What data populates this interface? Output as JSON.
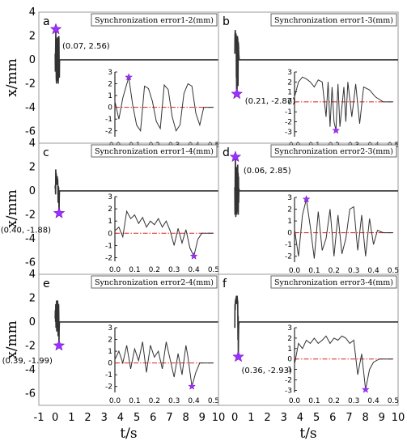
{
  "chart_data": {
    "type": "line",
    "xlabel": "t/s",
    "ylabel": "x/mm",
    "xlim": [
      -1,
      10
    ],
    "ylim": [
      -7,
      4
    ],
    "xticks": [
      -1,
      0,
      1,
      2,
      3,
      4,
      5,
      6,
      7,
      8,
      9,
      10
    ],
    "yticks": [
      4,
      2,
      0,
      -2,
      -4,
      -6
    ],
    "inset_xticks": [
      "0.0",
      "0.1",
      "0.2",
      "0.3",
      "0.4",
      "0.5"
    ],
    "inset_yticks": [
      3,
      2,
      1,
      0,
      -1,
      -2,
      -3
    ],
    "panels": [
      {
        "label": "a",
        "title": "Synchronization error1-2(mm)",
        "marker": {
          "t": 0.07,
          "x": 2.56,
          "label": "(0.07, 2.56)"
        },
        "inset_ylim": [
          -2.5,
          3
        ],
        "inset_yticks": [
          3,
          2,
          1,
          0,
          -1,
          -2
        ],
        "series": [
          {
            "t": 0.0,
            "x": 0.5
          },
          {
            "t": 0.02,
            "x": -1.0
          },
          {
            "t": 0.04,
            "x": 0.8
          },
          {
            "t": 0.07,
            "x": 2.56
          },
          {
            "t": 0.09,
            "x": 0.2
          },
          {
            "t": 0.11,
            "x": -1.5
          },
          {
            "t": 0.13,
            "x": -2.0
          },
          {
            "t": 0.15,
            "x": 1.8
          },
          {
            "t": 0.17,
            "x": 1.6
          },
          {
            "t": 0.19,
            "x": 0.5
          },
          {
            "t": 0.21,
            "x": -1.2
          },
          {
            "t": 0.23,
            "x": -1.8
          },
          {
            "t": 0.25,
            "x": 1.9
          },
          {
            "t": 0.27,
            "x": 1.5
          },
          {
            "t": 0.29,
            "x": -0.8
          },
          {
            "t": 0.31,
            "x": -2.0
          },
          {
            "t": 0.33,
            "x": -1.5
          },
          {
            "t": 0.35,
            "x": 1.2
          },
          {
            "t": 0.37,
            "x": 2.0
          },
          {
            "t": 0.39,
            "x": 1.8
          },
          {
            "t": 0.41,
            "x": -0.5
          },
          {
            "t": 0.43,
            "x": -1.5
          },
          {
            "t": 0.45,
            "x": 0.0
          },
          {
            "t": 0.47,
            "x": 0.0
          },
          {
            "t": 0.5,
            "x": 0.0
          }
        ]
      },
      {
        "label": "b",
        "title": "Synchronization error1-3(mm)",
        "marker": {
          "t": 0.21,
          "x": -2.87,
          "label": "(0.21, -2.87)"
        },
        "inset_ylim": [
          -3.5,
          3
        ],
        "inset_yticks": [
          3,
          2,
          1,
          0,
          -1,
          -2,
          -3
        ],
        "series": [
          {
            "t": 0.0,
            "x": 0.5
          },
          {
            "t": 0.02,
            "x": 2.0
          },
          {
            "t": 0.04,
            "x": 2.5
          },
          {
            "t": 0.06,
            "x": 2.3
          },
          {
            "t": 0.08,
            "x": 2.0
          },
          {
            "t": 0.1,
            "x": 1.5
          },
          {
            "t": 0.12,
            "x": 2.2
          },
          {
            "t": 0.14,
            "x": 2.0
          },
          {
            "t": 0.16,
            "x": -1.5
          },
          {
            "t": 0.17,
            "x": 2.0
          },
          {
            "t": 0.18,
            "x": -2.5
          },
          {
            "t": 0.19,
            "x": 1.5
          },
          {
            "t": 0.2,
            "x": -2.0
          },
          {
            "t": 0.21,
            "x": -2.87
          },
          {
            "t": 0.22,
            "x": 1.8
          },
          {
            "t": 0.23,
            "x": -2.5
          },
          {
            "t": 0.25,
            "x": 1.5
          },
          {
            "t": 0.26,
            "x": -2.0
          },
          {
            "t": 0.27,
            "x": 2.0
          },
          {
            "t": 0.29,
            "x": -1.5
          },
          {
            "t": 0.31,
            "x": 1.8
          },
          {
            "t": 0.33,
            "x": -2.2
          },
          {
            "t": 0.35,
            "x": 1.5
          },
          {
            "t": 0.38,
            "x": 1.2
          },
          {
            "t": 0.41,
            "x": 0.5
          },
          {
            "t": 0.45,
            "x": 0.0
          },
          {
            "t": 0.5,
            "x": 0.0
          }
        ]
      },
      {
        "label": "c",
        "title": "Synchronization error1-4(mm)",
        "marker": {
          "t": 0.4,
          "x": -1.88,
          "label": "(0.40, -1.88)"
        },
        "inset_ylim": [
          -2.3,
          3
        ],
        "inset_yticks": [
          3,
          2,
          1,
          0,
          -1,
          -2
        ],
        "series": [
          {
            "t": 0.0,
            "x": 0.2
          },
          {
            "t": 0.02,
            "x": 0.5
          },
          {
            "t": 0.04,
            "x": -0.3
          },
          {
            "t": 0.06,
            "x": 1.8
          },
          {
            "t": 0.08,
            "x": 1.2
          },
          {
            "t": 0.1,
            "x": 1.5
          },
          {
            "t": 0.12,
            "x": 0.8
          },
          {
            "t": 0.14,
            "x": 1.3
          },
          {
            "t": 0.16,
            "x": 0.5
          },
          {
            "t": 0.18,
            "x": 1.0
          },
          {
            "t": 0.2,
            "x": 0.7
          },
          {
            "t": 0.22,
            "x": 1.2
          },
          {
            "t": 0.24,
            "x": 0.5
          },
          {
            "t": 0.26,
            "x": 1.0
          },
          {
            "t": 0.28,
            "x": 0.2
          },
          {
            "t": 0.3,
            "x": -1.0
          },
          {
            "t": 0.32,
            "x": 0.4
          },
          {
            "t": 0.34,
            "x": -0.8
          },
          {
            "t": 0.36,
            "x": 0.3
          },
          {
            "t": 0.38,
            "x": -1.2
          },
          {
            "t": 0.4,
            "x": -1.88
          },
          {
            "t": 0.42,
            "x": -0.5
          },
          {
            "t": 0.44,
            "x": 0.0
          },
          {
            "t": 0.47,
            "x": 0.0
          },
          {
            "t": 0.5,
            "x": 0.0
          }
        ]
      },
      {
        "label": "d",
        "title": "Synchronization error2-3(mm)",
        "marker": {
          "t": 0.06,
          "x": 2.85,
          "label": "(0.06, 2.85)"
        },
        "inset_ylim": [
          -2.5,
          3
        ],
        "inset_yticks": [
          3,
          2,
          1,
          0,
          -1,
          -2
        ],
        "series": [
          {
            "t": 0.0,
            "x": 0.3
          },
          {
            "t": 0.02,
            "x": -2.0
          },
          {
            "t": 0.04,
            "x": 1.5
          },
          {
            "t": 0.06,
            "x": 2.85
          },
          {
            "t": 0.08,
            "x": 0.5
          },
          {
            "t": 0.1,
            "x": -2.2
          },
          {
            "t": 0.12,
            "x": 1.8
          },
          {
            "t": 0.14,
            "x": -1.5
          },
          {
            "t": 0.16,
            "x": -0.5
          },
          {
            "t": 0.18,
            "x": 2.0
          },
          {
            "t": 0.2,
            "x": -2.0
          },
          {
            "t": 0.22,
            "x": 1.5
          },
          {
            "t": 0.24,
            "x": -1.8
          },
          {
            "t": 0.26,
            "x": -0.5
          },
          {
            "t": 0.28,
            "x": 2.0
          },
          {
            "t": 0.3,
            "x": 2.2
          },
          {
            "t": 0.32,
            "x": -1.5
          },
          {
            "t": 0.34,
            "x": 1.5
          },
          {
            "t": 0.36,
            "x": -2.0
          },
          {
            "t": 0.38,
            "x": 1.2
          },
          {
            "t": 0.4,
            "x": -1.0
          },
          {
            "t": 0.42,
            "x": 0.2
          },
          {
            "t": 0.45,
            "x": 0.0
          },
          {
            "t": 0.5,
            "x": 0.0
          }
        ]
      },
      {
        "label": "e",
        "title": "Synchronization error2-4(mm)",
        "marker": {
          "t": 0.39,
          "x": -1.99,
          "label": "(0.39, -1.99)"
        },
        "inset_ylim": [
          -2.5,
          3
        ],
        "inset_yticks": [
          3,
          2,
          1,
          0,
          -1,
          -2
        ],
        "series": [
          {
            "t": 0.0,
            "x": 0.3
          },
          {
            "t": 0.02,
            "x": 1.0
          },
          {
            "t": 0.04,
            "x": 0.0
          },
          {
            "t": 0.06,
            "x": 1.5
          },
          {
            "t": 0.08,
            "x": -0.5
          },
          {
            "t": 0.1,
            "x": 1.2
          },
          {
            "t": 0.12,
            "x": 0.2
          },
          {
            "t": 0.14,
            "x": 1.8
          },
          {
            "t": 0.16,
            "x": -0.8
          },
          {
            "t": 0.18,
            "x": 1.5
          },
          {
            "t": 0.2,
            "x": 0.5
          },
          {
            "t": 0.22,
            "x": 1.0
          },
          {
            "t": 0.24,
            "x": -0.5
          },
          {
            "t": 0.26,
            "x": 1.8
          },
          {
            "t": 0.28,
            "x": 0.3
          },
          {
            "t": 0.3,
            "x": -1.2
          },
          {
            "t": 0.32,
            "x": 0.8
          },
          {
            "t": 0.34,
            "x": -1.0
          },
          {
            "t": 0.36,
            "x": 1.5
          },
          {
            "t": 0.37,
            "x": 0.5
          },
          {
            "t": 0.39,
            "x": -1.99
          },
          {
            "t": 0.41,
            "x": -0.8
          },
          {
            "t": 0.43,
            "x": 0.0
          },
          {
            "t": 0.46,
            "x": 0.0
          },
          {
            "t": 0.5,
            "x": 0.0
          }
        ]
      },
      {
        "label": "f",
        "title": "Synchronization error3-4(mm)",
        "marker": {
          "t": 0.36,
          "x": -2.93,
          "label": "(0.36, -2.93)"
        },
        "inset_ylim": [
          -3.2,
          3
        ],
        "inset_yticks": [
          3,
          2,
          1,
          0,
          -1,
          -2,
          -3
        ],
        "series": [
          {
            "t": 0.0,
            "x": -0.5
          },
          {
            "t": 0.02,
            "x": 1.5
          },
          {
            "t": 0.04,
            "x": 1.0
          },
          {
            "t": 0.06,
            "x": 1.8
          },
          {
            "t": 0.08,
            "x": 1.5
          },
          {
            "t": 0.1,
            "x": 2.0
          },
          {
            "t": 0.12,
            "x": 1.5
          },
          {
            "t": 0.14,
            "x": 1.8
          },
          {
            "t": 0.16,
            "x": 2.2
          },
          {
            "t": 0.18,
            "x": 1.5
          },
          {
            "t": 0.2,
            "x": 2.0
          },
          {
            "t": 0.22,
            "x": 1.8
          },
          {
            "t": 0.24,
            "x": 2.2
          },
          {
            "t": 0.26,
            "x": 2.0
          },
          {
            "t": 0.28,
            "x": 1.5
          },
          {
            "t": 0.3,
            "x": 1.8
          },
          {
            "t": 0.32,
            "x": -1.5
          },
          {
            "t": 0.34,
            "x": 0.5
          },
          {
            "t": 0.36,
            "x": -2.93
          },
          {
            "t": 0.38,
            "x": -1.0
          },
          {
            "t": 0.4,
            "x": -0.3
          },
          {
            "t": 0.43,
            "x": 0.0
          },
          {
            "t": 0.5,
            "x": 0.0
          }
        ]
      }
    ]
  }
}
